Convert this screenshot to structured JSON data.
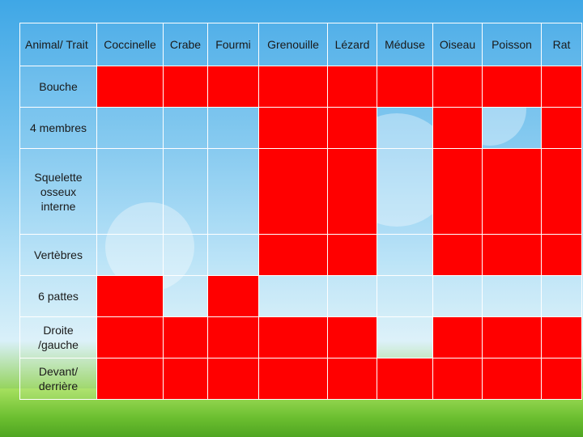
{
  "table": {
    "corner_header": "Animal/ Trait",
    "columns": [
      "Coccinelle",
      "Crabe",
      "Fourmi",
      "Grenouille",
      "Lézard",
      "Méduse",
      "Oiseau",
      "Poisson",
      "Rat"
    ],
    "rows": [
      {
        "label": "Bouche",
        "marked": [
          true,
          true,
          true,
          true,
          true,
          true,
          true,
          true,
          true
        ]
      },
      {
        "label": "4 membres",
        "marked": [
          false,
          false,
          false,
          true,
          true,
          false,
          true,
          false,
          true
        ]
      },
      {
        "label": "Squelette osseux interne",
        "marked": [
          false,
          false,
          false,
          true,
          true,
          false,
          true,
          true,
          true
        ]
      },
      {
        "label": "Vertèbres",
        "marked": [
          false,
          false,
          false,
          true,
          true,
          false,
          true,
          true,
          true
        ]
      },
      {
        "label": "6 pattes",
        "marked": [
          true,
          false,
          true,
          false,
          false,
          false,
          false,
          false,
          false
        ]
      },
      {
        "label": "Droite /gauche",
        "marked": [
          true,
          true,
          true,
          true,
          true,
          false,
          true,
          true,
          true
        ]
      },
      {
        "label": "Devant/ derrière",
        "marked": [
          true,
          true,
          true,
          true,
          true,
          true,
          true,
          true,
          true
        ]
      }
    ]
  },
  "colors": {
    "marked": "#ff0000",
    "grid_line": "#ffffff"
  }
}
